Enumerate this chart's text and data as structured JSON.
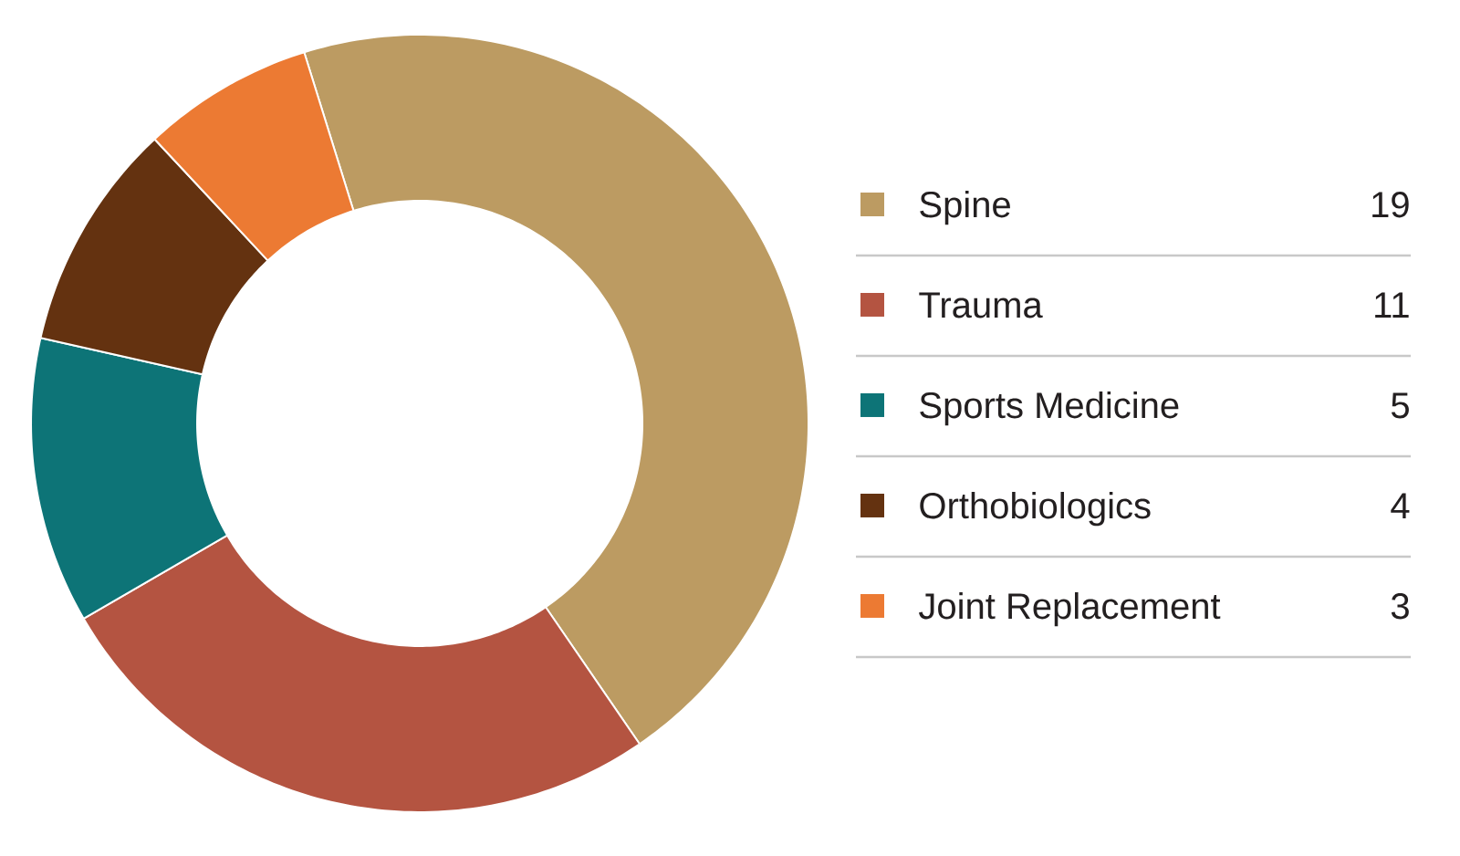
{
  "chart_data": {
    "type": "donut",
    "categories": [
      "Spine",
      "Trauma",
      "Sports Medicine",
      "Orthobiologics",
      "Joint Replacement"
    ],
    "values": [
      19,
      11,
      5,
      4,
      3
    ],
    "colors": [
      "#bc9b62",
      "#b45441",
      "#0d7477",
      "#643210",
      "#ec7a33"
    ],
    "legend": "right",
    "data_labels": true
  }
}
